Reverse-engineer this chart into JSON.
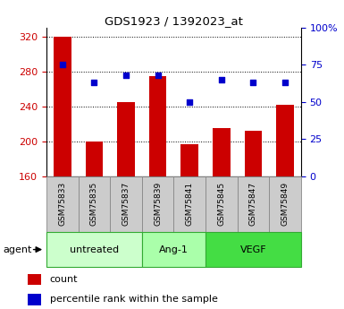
{
  "title": "GDS1923 / 1392023_at",
  "samples": [
    "GSM75833",
    "GSM75835",
    "GSM75837",
    "GSM75839",
    "GSM75841",
    "GSM75845",
    "GSM75847",
    "GSM75849"
  ],
  "counts": [
    320,
    200,
    245,
    275,
    197,
    215,
    212,
    242
  ],
  "percentiles": [
    75,
    63,
    68,
    68,
    50,
    65,
    63,
    63
  ],
  "baseline": 160,
  "ylim": [
    160,
    330
  ],
  "yticks": [
    160,
    200,
    240,
    280,
    320
  ],
  "right_ylim": [
    0,
    100
  ],
  "right_yticks": [
    0,
    25,
    50,
    75,
    100
  ],
  "right_yticklabels": [
    "0",
    "25",
    "50",
    "75",
    "100%"
  ],
  "groups": [
    {
      "label": "untreated",
      "indices": [
        0,
        1,
        2
      ],
      "color": "#ccffcc"
    },
    {
      "label": "Ang-1",
      "indices": [
        3,
        4
      ],
      "color": "#aaffaa"
    },
    {
      "label": "VEGF",
      "indices": [
        5,
        6,
        7
      ],
      "color": "#44dd44"
    }
  ],
  "bar_color": "#cc0000",
  "dot_color": "#0000cc",
  "tick_color_left": "#cc0000",
  "tick_color_right": "#0000cc",
  "background_color": "#ffffff",
  "sample_cell_color": "#cccccc",
  "sample_cell_border": "#888888",
  "group_border_color": "#33aa33",
  "agent_label": "agent",
  "legend_count_label": "count",
  "legend_pct_label": "percentile rank within the sample",
  "legend_count_color": "#cc0000",
  "legend_pct_color": "#0000cc"
}
